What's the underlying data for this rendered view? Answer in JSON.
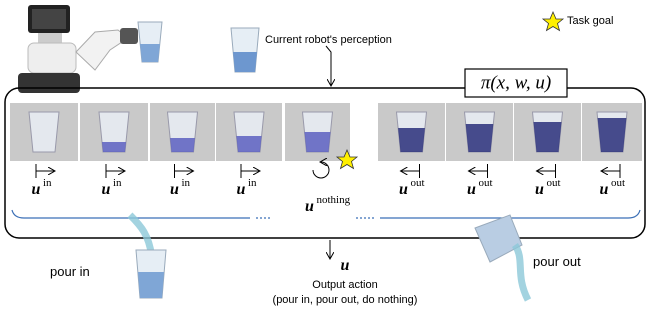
{
  "perception_label": "Current robot's perception",
  "goal_label": "Task goal",
  "policy": "π(x, w, u)",
  "actions": [
    {
      "symbol": "u",
      "superscript": "in"
    },
    {
      "symbol": "u",
      "superscript": "in"
    },
    {
      "symbol": "u",
      "superscript": "in"
    },
    {
      "symbol": "u",
      "superscript": "in"
    },
    {
      "symbol": "u",
      "superscript": "nothing"
    },
    {
      "symbol": "u",
      "superscript": "out"
    },
    {
      "symbol": "u",
      "superscript": "out"
    },
    {
      "symbol": "u",
      "superscript": "out"
    },
    {
      "symbol": "u",
      "superscript": "out"
    }
  ],
  "pour_in": "pour in",
  "pour_out": "pour out",
  "output_symbol": "u",
  "output_label": "Output action",
  "output_options": "(pour in, pour out, do nothing)"
}
